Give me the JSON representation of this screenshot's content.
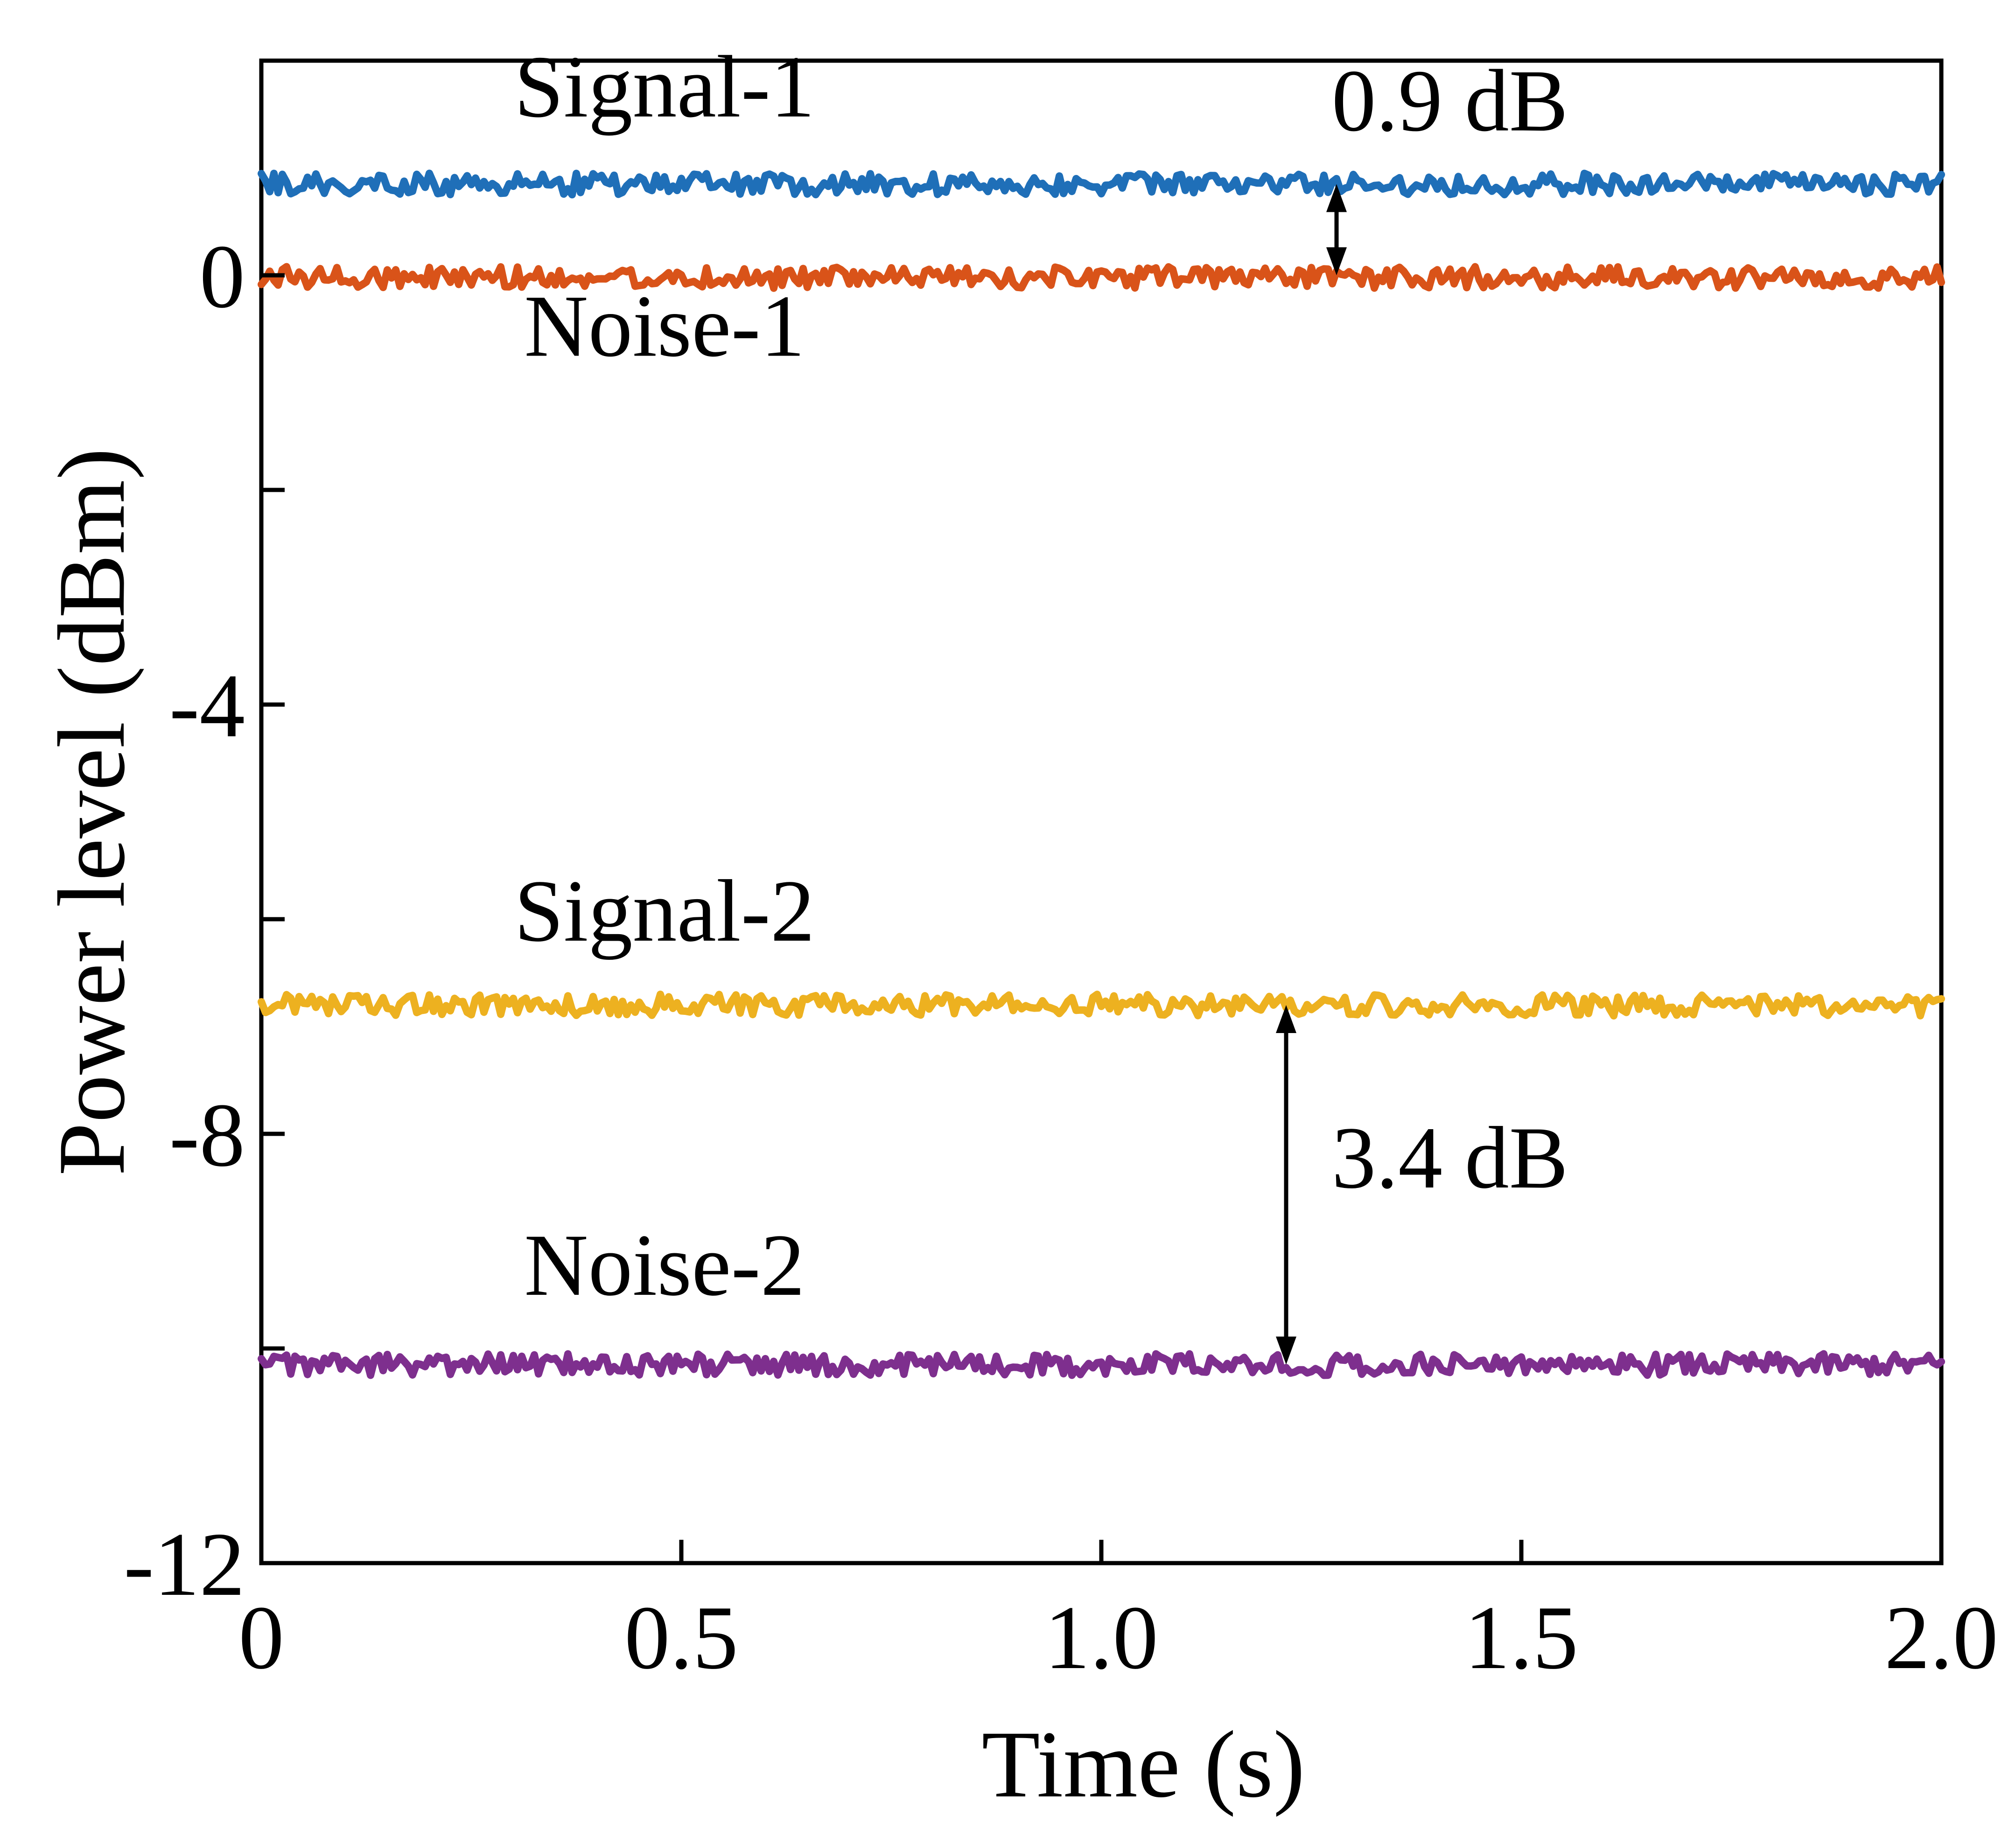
{
  "chart_data": {
    "type": "line",
    "title": "",
    "xlabel": "Time (s)",
    "ylabel": "Power level (dBm)",
    "xlim": [
      0,
      2.0
    ],
    "ylim": [
      -12,
      2
    ],
    "x_ticks": [
      0,
      0.5,
      1.0,
      1.5,
      2.0
    ],
    "x_tick_labels": [
      "0",
      "0.5",
      "1.0",
      "1.5",
      "2.0"
    ],
    "y_ticks": [
      -12,
      -10,
      -8,
      -6,
      -4,
      -2,
      0
    ],
    "y_tick_labels": [
      "-12",
      "",
      "-8",
      "",
      "-4",
      "",
      "0"
    ],
    "grid": false,
    "legend": "none",
    "series": [
      {
        "name": "Signal-1",
        "color": "#1f6fb8",
        "mean": 0.85,
        "fluctuation": 0.1,
        "x_range": [
          0,
          2.0
        ]
      },
      {
        "name": "Noise-1",
        "color": "#d95319",
        "mean": -0.02,
        "fluctuation": 0.1,
        "x_range": [
          0,
          2.0
        ]
      },
      {
        "name": "Signal-2",
        "color": "#edb120",
        "mean": -6.8,
        "fluctuation": 0.1,
        "x_range": [
          0,
          2.0
        ]
      },
      {
        "name": "Noise-2",
        "color": "#7e2f8e",
        "mean": -10.15,
        "fluctuation": 0.1,
        "x_range": [
          0,
          2.0
        ]
      }
    ],
    "annotations": [
      {
        "text": "Signal-1",
        "x": 0.48,
        "y": 1.48
      },
      {
        "text": "Noise-1",
        "x": 0.48,
        "y": -0.75
      },
      {
        "text": "Signal-2",
        "x": 0.48,
        "y": -6.2
      },
      {
        "text": "Noise-2",
        "x": 0.48,
        "y": -9.5
      },
      {
        "text": "0.9 dB",
        "x": 1.415,
        "y": 1.35
      },
      {
        "text": "3.4 dB",
        "x": 1.415,
        "y": -8.5
      }
    ],
    "arrows": [
      {
        "label": "0.9 dB",
        "x": 1.28,
        "y_from": 0.85,
        "y_to": 0.0
      },
      {
        "label": "3.4 dB",
        "x": 1.22,
        "y_from": -6.8,
        "y_to": -10.15
      }
    ]
  }
}
